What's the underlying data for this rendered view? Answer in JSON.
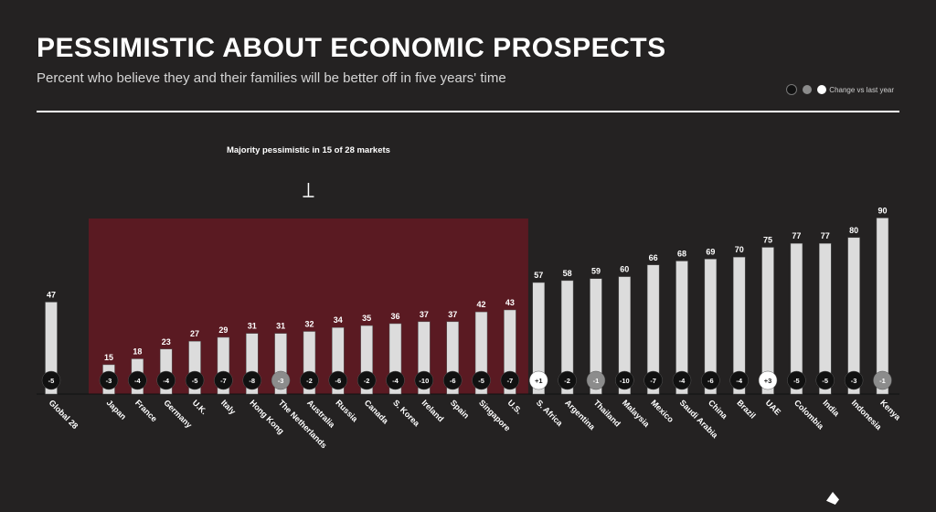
{
  "header": {
    "title": "PESSIMISTIC ABOUT ECONOMIC PROSPECTS",
    "subtitle": "Percent who believe they and their families will be better off in five years' time"
  },
  "legend": {
    "items": [
      {
        "label": "",
        "color": "#111111"
      },
      {
        "label": "",
        "color": "#8c8c8c"
      },
      {
        "label": "Change vs last year",
        "color": "#ffffff"
      }
    ]
  },
  "colors": {
    "background": "#242222",
    "bar": "#dcdcdc",
    "bar_dark": "#c8c8c8",
    "highlight": "#5a1a22",
    "badge_default": "#111111",
    "badge_grey": "#8c8c8c",
    "badge_white": "#ffffff"
  },
  "chart_data": {
    "type": "bar",
    "annotation": "Majority pessimistic in 15 of 28 markets",
    "ylim": [
      0,
      100
    ],
    "bars": [
      {
        "label": "Global 28",
        "value": 47,
        "change": "-5",
        "badge": "dark"
      },
      {
        "label": "Japan",
        "value": 15,
        "change": "-3",
        "badge": "dark"
      },
      {
        "label": "France",
        "value": 18,
        "change": "-4",
        "badge": "dark"
      },
      {
        "label": "Germany",
        "value": 23,
        "change": "-4",
        "badge": "dark"
      },
      {
        "label": "U.K.",
        "value": 27,
        "change": "-5",
        "badge": "dark"
      },
      {
        "label": "Italy",
        "value": 29,
        "change": "-7",
        "badge": "dark"
      },
      {
        "label": "Hong Kong",
        "value": 31,
        "change": "-8",
        "badge": "dark"
      },
      {
        "label": "The Netherlands",
        "value": 31,
        "change": "-3",
        "badge": "grey"
      },
      {
        "label": "Australia",
        "value": 32,
        "change": "-2",
        "badge": "dark"
      },
      {
        "label": "Russia",
        "value": 34,
        "change": "-6",
        "badge": "dark"
      },
      {
        "label": "Canada",
        "value": 35,
        "change": "-2",
        "badge": "dark"
      },
      {
        "label": "S. Korea",
        "value": 36,
        "change": "-4",
        "badge": "dark"
      },
      {
        "label": "Ireland",
        "value": 37,
        "change": "-10",
        "badge": "dark"
      },
      {
        "label": "Spain",
        "value": 37,
        "change": "-6",
        "badge": "dark"
      },
      {
        "label": "Singapore",
        "value": 42,
        "change": "-5",
        "badge": "dark"
      },
      {
        "label": "U.S.",
        "value": 43,
        "change": "-7",
        "badge": "dark"
      },
      {
        "label": "S. Africa",
        "value": 57,
        "change": "+1",
        "badge": "white"
      },
      {
        "label": "Argentina",
        "value": 58,
        "change": "-2",
        "badge": "dark"
      },
      {
        "label": "Thailand",
        "value": 59,
        "change": "-1",
        "badge": "grey"
      },
      {
        "label": "Malaysia",
        "value": 60,
        "change": "-10",
        "badge": "dark"
      },
      {
        "label": "Mexico",
        "value": 66,
        "change": "-7",
        "badge": "dark"
      },
      {
        "label": "Saudi Arabia",
        "value": 68,
        "change": "-4",
        "badge": "dark"
      },
      {
        "label": "China",
        "value": 69,
        "change": "-6",
        "badge": "dark"
      },
      {
        "label": "Brazil",
        "value": 70,
        "change": "-4",
        "badge": "dark"
      },
      {
        "label": "UAE",
        "value": 75,
        "change": "+3",
        "badge": "white"
      },
      {
        "label": "Colombia",
        "value": 77,
        "change": "-5",
        "badge": "dark"
      },
      {
        "label": "India",
        "value": 77,
        "change": "-5",
        "badge": "dark"
      },
      {
        "label": "Indonesia",
        "value": 80,
        "change": "-3",
        "badge": "dark"
      },
      {
        "label": "Kenya",
        "value": 90,
        "change": "-1",
        "badge": "grey"
      }
    ],
    "highlight_range": [
      "Japan",
      "U.S."
    ]
  }
}
